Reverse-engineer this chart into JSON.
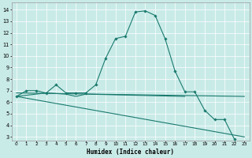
{
  "xlabel": "Humidex (Indice chaleur)",
  "xlim": [
    -0.5,
    23.5
  ],
  "ylim": [
    2.7,
    14.6
  ],
  "yticks": [
    3,
    4,
    5,
    6,
    7,
    8,
    9,
    10,
    11,
    12,
    13,
    14
  ],
  "xticks": [
    0,
    1,
    2,
    3,
    4,
    5,
    6,
    7,
    8,
    9,
    10,
    11,
    12,
    13,
    14,
    15,
    16,
    17,
    18,
    19,
    20,
    21,
    22,
    23
  ],
  "bg_color": "#c9ebe8",
  "grid_color": "#ffffff",
  "line_color": "#1a7a6e",
  "line1_x": [
    0,
    1,
    2,
    3,
    4,
    5,
    6,
    7,
    8,
    9,
    10,
    11,
    12,
    13,
    14,
    15,
    16,
    17,
    18,
    19,
    20,
    21,
    22
  ],
  "line1_y": [
    6.5,
    7.0,
    7.0,
    6.8,
    7.5,
    6.8,
    6.8,
    6.8,
    7.5,
    9.8,
    11.5,
    11.7,
    13.8,
    13.9,
    13.5,
    11.5,
    8.7,
    6.9,
    6.9,
    5.3,
    4.5,
    4.5,
    2.8
  ],
  "line2_x": [
    0,
    3,
    5,
    6,
    7,
    17
  ],
  "line2_y": [
    6.5,
    6.8,
    6.7,
    6.5,
    6.7,
    6.5
  ],
  "line3_x": [
    0,
    23
  ],
  "line3_y": [
    6.8,
    6.5
  ],
  "line4_x": [
    0,
    23
  ],
  "line4_y": [
    6.5,
    3.0
  ],
  "figsize": [
    3.2,
    2.0
  ],
  "dpi": 100
}
